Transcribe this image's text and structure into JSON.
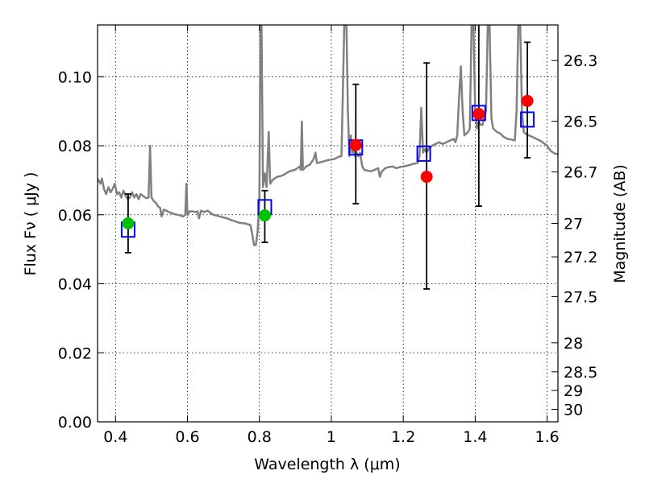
{
  "chart_data": {
    "type": "scatter",
    "xlabel": "Wavelength  λ (μm)",
    "ylabel": "Flux  Fν  ( μJy )",
    "y2label": "Magnitude (AB)",
    "xlim": [
      0.35,
      1.63
    ],
    "ylim": [
      0.0,
      0.115
    ],
    "x_ticks": [
      0.4,
      0.6,
      0.8,
      1.0,
      1.2,
      1.4,
      1.6
    ],
    "x_tick_labels": [
      "0.4",
      "0.6",
      "0.8",
      "1",
      "1.2",
      "1.4",
      "1.6"
    ],
    "y_ticks": [
      0.0,
      0.02,
      0.04,
      0.06,
      0.08,
      0.1
    ],
    "y_tick_labels": [
      "0.00",
      "0.02",
      "0.04",
      "0.06",
      "0.08",
      "0.10"
    ],
    "y2_ticks": [
      {
        "label": "26.3",
        "flux": 0.1047
      },
      {
        "label": "26.5",
        "flux": 0.0871
      },
      {
        "label": "26.7",
        "flux": 0.0724
      },
      {
        "label": "27",
        "flux": 0.0575
      },
      {
        "label": "27.2",
        "flux": 0.0478
      },
      {
        "label": "27.5",
        "flux": 0.0363
      },
      {
        "label": "28",
        "flux": 0.0229
      },
      {
        "label": "28.5",
        "flux": 0.0145
      },
      {
        "label": "29",
        "flux": 0.0091
      },
      {
        "label": "30",
        "flux": 0.0036
      }
    ],
    "grid": true,
    "colors": {
      "model": "#808080",
      "detection": "#00c000",
      "upper": "#ff0000",
      "model_box": "#0000ff",
      "errorbar": "#000000"
    },
    "model_spectrum": [
      [
        0.35,
        0.0705
      ],
      [
        0.358,
        0.069
      ],
      [
        0.362,
        0.0705
      ],
      [
        0.368,
        0.0675
      ],
      [
        0.374,
        0.066
      ],
      [
        0.38,
        0.068
      ],
      [
        0.386,
        0.0665
      ],
      [
        0.392,
        0.0675
      ],
      [
        0.398,
        0.069
      ],
      [
        0.404,
        0.066
      ],
      [
        0.41,
        0.0665
      ],
      [
        0.416,
        0.065
      ],
      [
        0.422,
        0.067
      ],
      [
        0.428,
        0.0655
      ],
      [
        0.434,
        0.0645
      ],
      [
        0.44,
        0.065
      ],
      [
        0.446,
        0.0665
      ],
      [
        0.452,
        0.065
      ],
      [
        0.458,
        0.066
      ],
      [
        0.464,
        0.0645
      ],
      [
        0.47,
        0.066
      ],
      [
        0.476,
        0.0655
      ],
      [
        0.482,
        0.065
      ],
      [
        0.488,
        0.0648
      ],
      [
        0.492,
        0.065
      ],
      [
        0.496,
        0.08
      ],
      [
        0.5,
        0.065
      ],
      [
        0.506,
        0.064
      ],
      [
        0.512,
        0.0635
      ],
      [
        0.518,
        0.0625
      ],
      [
        0.524,
        0.062
      ],
      [
        0.528,
        0.0595
      ],
      [
        0.534,
        0.0615
      ],
      [
        0.54,
        0.0612
      ],
      [
        0.548,
        0.0608
      ],
      [
        0.556,
        0.0605
      ],
      [
        0.564,
        0.0602
      ],
      [
        0.572,
        0.06
      ],
      [
        0.58,
        0.0598
      ],
      [
        0.588,
        0.0595
      ],
      [
        0.594,
        0.06
      ],
      [
        0.597,
        0.069
      ],
      [
        0.6,
        0.06
      ],
      [
        0.606,
        0.061
      ],
      [
        0.614,
        0.061
      ],
      [
        0.622,
        0.0608
      ],
      [
        0.628,
        0.061
      ],
      [
        0.632,
        0.059
      ],
      [
        0.638,
        0.0612
      ],
      [
        0.646,
        0.0608
      ],
      [
        0.656,
        0.0612
      ],
      [
        0.664,
        0.0605
      ],
      [
        0.672,
        0.06
      ],
      [
        0.68,
        0.0598
      ],
      [
        0.69,
        0.0595
      ],
      [
        0.7,
        0.0592
      ],
      [
        0.71,
        0.059
      ],
      [
        0.72,
        0.0585
      ],
      [
        0.73,
        0.0582
      ],
      [
        0.74,
        0.0578
      ],
      [
        0.75,
        0.0576
      ],
      [
        0.76,
        0.0575
      ],
      [
        0.77,
        0.0572
      ],
      [
        0.775,
        0.057
      ],
      [
        0.78,
        0.0545
      ],
      [
        0.785,
        0.0512
      ],
      [
        0.79,
        0.0512
      ],
      [
        0.795,
        0.055
      ],
      [
        0.8,
        0.064
      ],
      [
        0.803,
        0.115
      ],
      [
        0.806,
        0.115
      ],
      [
        0.81,
        0.068
      ],
      [
        0.815,
        0.072
      ],
      [
        0.82,
        0.068
      ],
      [
        0.826,
        0.084
      ],
      [
        0.83,
        0.069
      ],
      [
        0.836,
        0.07
      ],
      [
        0.842,
        0.0705
      ],
      [
        0.85,
        0.071
      ],
      [
        0.858,
        0.0712
      ],
      [
        0.866,
        0.0715
      ],
      [
        0.874,
        0.072
      ],
      [
        0.882,
        0.0725
      ],
      [
        0.89,
        0.0728
      ],
      [
        0.898,
        0.073
      ],
      [
        0.906,
        0.0735
      ],
      [
        0.912,
        0.074
      ],
      [
        0.915,
        0.073
      ],
      [
        0.918,
        0.087
      ],
      [
        0.921,
        0.073
      ],
      [
        0.93,
        0.074
      ],
      [
        0.94,
        0.0745
      ],
      [
        0.95,
        0.076
      ],
      [
        0.956,
        0.078
      ],
      [
        0.96,
        0.075
      ],
      [
        0.97,
        0.0752
      ],
      [
        0.98,
        0.0755
      ],
      [
        0.99,
        0.0758
      ],
      [
        1.0,
        0.076
      ],
      [
        1.01,
        0.0762
      ],
      [
        1.02,
        0.0768
      ],
      [
        1.028,
        0.077
      ],
      [
        1.032,
        0.095
      ],
      [
        1.036,
        0.115
      ],
      [
        1.042,
        0.115
      ],
      [
        1.046,
        0.09
      ],
      [
        1.05,
        0.077
      ],
      [
        1.054,
        0.083
      ],
      [
        1.058,
        0.078
      ],
      [
        1.062,
        0.079
      ],
      [
        1.066,
        0.077
      ],
      [
        1.07,
        0.078
      ],
      [
        1.075,
        0.077
      ],
      [
        1.08,
        0.078
      ],
      [
        1.086,
        0.074
      ],
      [
        1.092,
        0.073
      ],
      [
        1.1,
        0.0728
      ],
      [
        1.11,
        0.0726
      ],
      [
        1.12,
        0.073
      ],
      [
        1.13,
        0.0735
      ],
      [
        1.135,
        0.071
      ],
      [
        1.14,
        0.0725
      ],
      [
        1.15,
        0.0735
      ],
      [
        1.16,
        0.0738
      ],
      [
        1.17,
        0.074
      ],
      [
        1.18,
        0.0735
      ],
      [
        1.19,
        0.0738
      ],
      [
        1.2,
        0.074
      ],
      [
        1.21,
        0.0742
      ],
      [
        1.22,
        0.0745
      ],
      [
        1.23,
        0.0748
      ],
      [
        1.24,
        0.075
      ],
      [
        1.245,
        0.077
      ],
      [
        1.25,
        0.091
      ],
      [
        1.255,
        0.078
      ],
      [
        1.26,
        0.079
      ],
      [
        1.265,
        0.078
      ],
      [
        1.27,
        0.079
      ],
      [
        1.28,
        0.08
      ],
      [
        1.29,
        0.0805
      ],
      [
        1.3,
        0.081
      ],
      [
        1.31,
        0.0805
      ],
      [
        1.32,
        0.081
      ],
      [
        1.33,
        0.0815
      ],
      [
        1.34,
        0.082
      ],
      [
        1.345,
        0.081
      ],
      [
        1.35,
        0.083
      ],
      [
        1.355,
        0.0935
      ],
      [
        1.36,
        0.103
      ],
      [
        1.365,
        0.09
      ],
      [
        1.37,
        0.083
      ],
      [
        1.38,
        0.084
      ],
      [
        1.385,
        0.085
      ],
      [
        1.39,
        0.115
      ],
      [
        1.395,
        0.115
      ],
      [
        1.4,
        0.09
      ],
      [
        1.405,
        0.085
      ],
      [
        1.41,
        0.087
      ],
      [
        1.415,
        0.086
      ],
      [
        1.42,
        0.086
      ],
      [
        1.43,
        0.09
      ],
      [
        1.435,
        0.115
      ],
      [
        1.44,
        0.115
      ],
      [
        1.445,
        0.088
      ],
      [
        1.45,
        0.085
      ],
      [
        1.46,
        0.084
      ],
      [
        1.47,
        0.0835
      ],
      [
        1.48,
        0.0825
      ],
      [
        1.49,
        0.082
      ],
      [
        1.5,
        0.0818
      ],
      [
        1.51,
        0.0815
      ],
      [
        1.515,
        0.09
      ],
      [
        1.52,
        0.115
      ],
      [
        1.525,
        0.115
      ],
      [
        1.53,
        0.09
      ],
      [
        1.535,
        0.084
      ],
      [
        1.54,
        0.0835
      ],
      [
        1.55,
        0.083
      ],
      [
        1.56,
        0.0825
      ],
      [
        1.57,
        0.082
      ],
      [
        1.58,
        0.0815
      ],
      [
        1.59,
        0.0808
      ],
      [
        1.6,
        0.08
      ],
      [
        1.61,
        0.0785
      ],
      [
        1.62,
        0.0778
      ],
      [
        1.63,
        0.0775
      ]
    ],
    "series": [
      {
        "values": [
          {
            "x": 0.435,
            "y": 0.0575,
            "err_low": 0.049,
            "err_high": 0.066
          },
          {
            "x": 0.815,
            "y": 0.0598,
            "err_low": 0.052,
            "err_high": 0.067
          }
        ]
      },
      {
        "values": [
          {
            "x": 1.068,
            "y": 0.0802,
            "err_low": 0.0632,
            "err_high": 0.0978
          },
          {
            "x": 1.265,
            "y": 0.071,
            "err_low": 0.0385,
            "err_high": 0.104
          },
          {
            "x": 1.41,
            "y": 0.0892,
            "err_low": 0.0625,
            "err_high": 0.116
          },
          {
            "x": 1.545,
            "y": 0.093,
            "err_low": 0.0765,
            "err_high": 0.11
          }
        ]
      },
      {
        "values": [
          {
            "x": 0.435,
            "y": 0.0557
          },
          {
            "x": 0.815,
            "y": 0.0622
          },
          {
            "x": 1.068,
            "y": 0.0795
          },
          {
            "x": 1.257,
            "y": 0.0777
          },
          {
            "x": 1.41,
            "y": 0.0895
          },
          {
            "x": 1.545,
            "y": 0.0876
          }
        ]
      }
    ]
  }
}
